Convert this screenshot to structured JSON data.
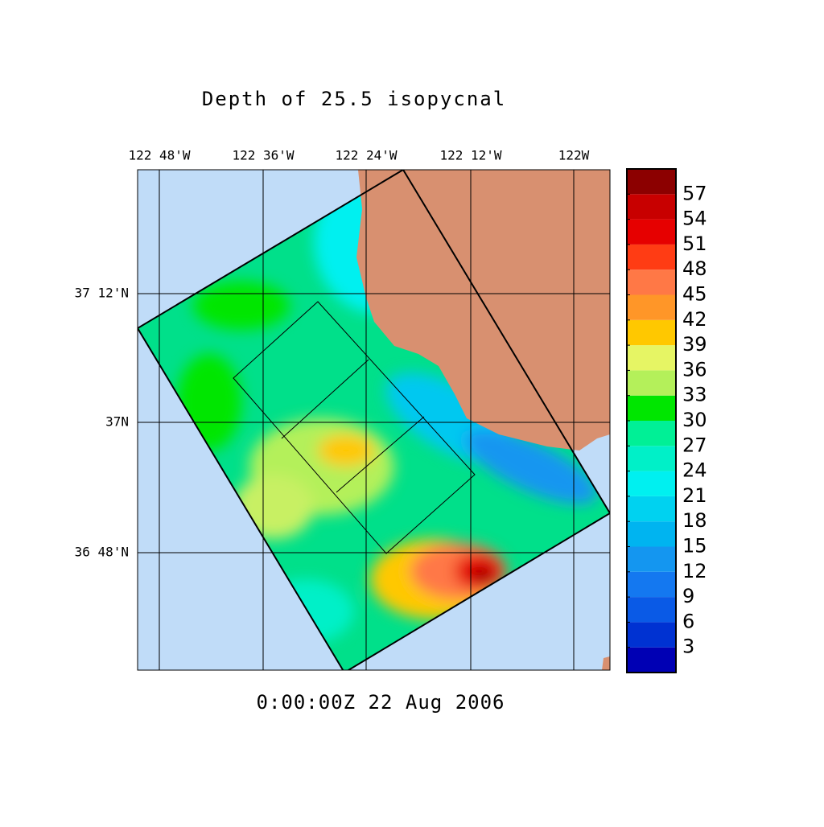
{
  "title": "Depth of 25.5 isopycnal",
  "timestamp": "0:00:00Z  22 Aug 2006",
  "lon_labels": [
    "122 48'W",
    "122 36'W",
    "122 24'W",
    "122 12'W",
    "122W"
  ],
  "lat_labels": [
    "37 12'N",
    "37N",
    "36 48'N"
  ],
  "colorbar": {
    "range": [
      0,
      60
    ],
    "levels": [
      3,
      6,
      9,
      12,
      15,
      18,
      21,
      24,
      27,
      30,
      33,
      36,
      39,
      42,
      45,
      48,
      51,
      54,
      57
    ],
    "colors": [
      "#0000b4",
      "#0032d2",
      "#0a5ae6",
      "#1478f0",
      "#1496f0",
      "#00b4f0",
      "#00d2f0",
      "#00f0f0",
      "#00f0c8",
      "#00f096",
      "#00e600",
      "#b4f05a",
      "#e6f564",
      "#ffc800",
      "#ff9628",
      "#ff7846",
      "#ff3c14",
      "#e60000",
      "#c80000",
      "#8c0000"
    ]
  }
}
